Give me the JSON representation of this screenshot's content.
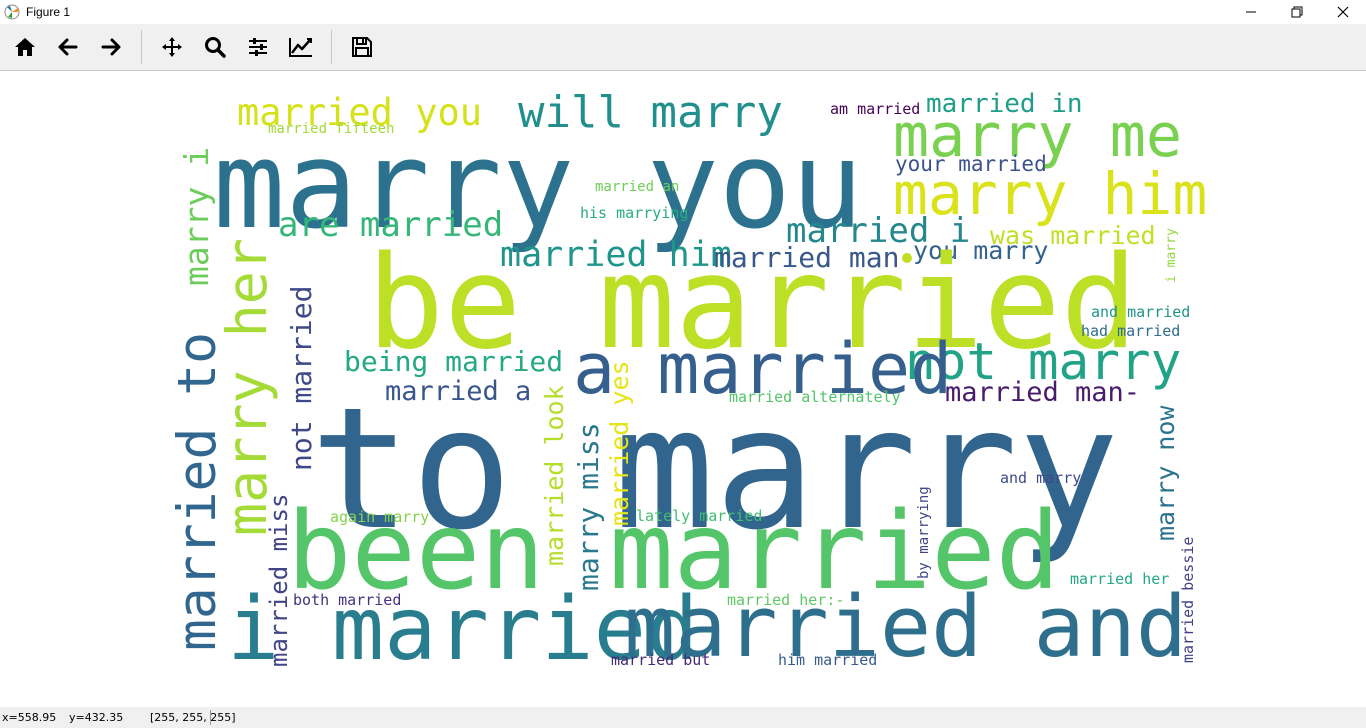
{
  "window": {
    "title": "Figure 1",
    "controls": [
      "minimize-icon",
      "restore-icon",
      "close-icon"
    ]
  },
  "toolbar": {
    "buttons": [
      {
        "name": "home",
        "icon": "home-icon"
      },
      {
        "name": "back",
        "icon": "arrow-left-icon"
      },
      {
        "name": "forward",
        "icon": "arrow-right-icon"
      },
      {
        "name": "pan",
        "icon": "move-icon"
      },
      {
        "name": "zoom",
        "icon": "magnifier-icon"
      },
      {
        "name": "subplots",
        "icon": "sliders-icon"
      },
      {
        "name": "customize",
        "icon": "line-chart-icon"
      },
      {
        "name": "save",
        "icon": "floppy-disk-icon"
      }
    ]
  },
  "status": {
    "x": "x=558.95",
    "y": "y=432.35",
    "rgb": "[255, 255, 255]"
  },
  "wordcloud": {
    "background": "#ffffff",
    "words": [
      {
        "text": "married you",
        "color": "#d5e21a"
      },
      {
        "text": "will marry",
        "color": "#21908d"
      },
      {
        "text": "am married",
        "color": "#440154"
      },
      {
        "text": "married in",
        "color": "#1f9e89"
      },
      {
        "text": "married fifteen",
        "color": "#a2da37"
      },
      {
        "text": "marry you",
        "color": "#2c728e"
      },
      {
        "text": "marry me",
        "color": "#7ad151"
      },
      {
        "text": "your married",
        "color": "#3b528b"
      },
      {
        "text": "marry him",
        "color": "#dae319"
      },
      {
        "text": "married an",
        "color": "#6ece58"
      },
      {
        "text": "his marrying",
        "color": "#26ad81"
      },
      {
        "text": "are married",
        "color": "#35b779"
      },
      {
        "text": "married i",
        "color": "#24878e"
      },
      {
        "text": "was married",
        "color": "#c0df25"
      },
      {
        "text": "married him",
        "color": "#1f968b"
      },
      {
        "text": "married man",
        "color": "#38588c"
      },
      {
        "text": "you marry",
        "color": "#33638d"
      },
      {
        "text": "be married",
        "color": "#bddf26"
      },
      {
        "text": "and married",
        "color": "#1f948c"
      },
      {
        "text": "had married",
        "color": "#2f6c8e"
      },
      {
        "text": "not marry",
        "color": "#20a386"
      },
      {
        "text": "being married",
        "color": "#23a983"
      },
      {
        "text": "a married",
        "color": "#355f8d"
      },
      {
        "text": "married a",
        "color": "#39558c"
      },
      {
        "text": "married man-",
        "color": "#481b6d"
      },
      {
        "text": "married alternately",
        "color": "#52c569"
      },
      {
        "text": "to marry",
        "color": "#31658e"
      },
      {
        "text": "and marry",
        "color": "#3e4a89"
      },
      {
        "text": "again marry",
        "color": "#84d44b"
      },
      {
        "text": "lately married",
        "color": "#42be71"
      },
      {
        "text": "been married",
        "color": "#54c568"
      },
      {
        "text": "i married",
        "color": "#287d8e"
      },
      {
        "text": "married and",
        "color": "#2e6f8e"
      },
      {
        "text": "both married",
        "color": "#46327e"
      },
      {
        "text": "married her:-",
        "color": "#5ec962"
      },
      {
        "text": "married her",
        "color": "#22a884"
      },
      {
        "text": "married but",
        "color": "#482878"
      },
      {
        "text": "him married",
        "color": "#365c8d"
      },
      {
        "text": "marry i",
        "color": "#6ccd5a"
      },
      {
        "text": "married to",
        "color": "#31668e"
      },
      {
        "text": "marry her",
        "color": "#a5db36"
      },
      {
        "text": "not married",
        "color": "#3e4989"
      },
      {
        "text": "married miss",
        "color": "#414487"
      },
      {
        "text": "married look",
        "color": "#b5de2b"
      },
      {
        "text": "marry miss",
        "color": "#2a788e"
      },
      {
        "text": "married yes",
        "color": "#e5e419"
      },
      {
        "text": "marry now",
        "color": "#2c738e"
      },
      {
        "text": "by marrying",
        "color": "#3f4788"
      },
      {
        "text": "married bessie",
        "color": "#424086"
      },
      {
        "text": "i marry",
        "color": "#95d840"
      }
    ]
  }
}
